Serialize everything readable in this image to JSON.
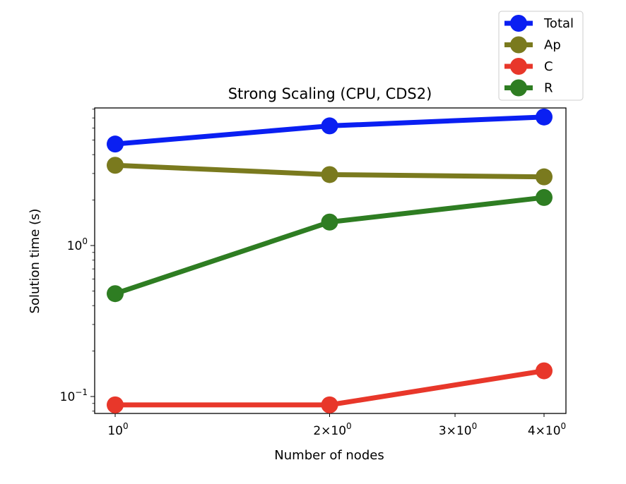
{
  "chart_data": {
    "type": "line",
    "title": "Strong Scaling (CPU, CDS2)",
    "xlabel": "Number of nodes",
    "ylabel": "Solution time (s)",
    "x_scale": "log",
    "y_scale": "log",
    "grid": false,
    "legend_position": "top-right",
    "x": [
      1,
      2,
      4
    ],
    "x_ticks": [
      {
        "value": 1,
        "base": "10",
        "exp": "0"
      },
      {
        "value": 2,
        "base": "2×10",
        "exp": "0"
      },
      {
        "value": 3,
        "base": "3×10",
        "exp": "0"
      },
      {
        "value": 4,
        "base": "4×10",
        "exp": "0"
      }
    ],
    "y_ticks": [
      {
        "value": 0.1,
        "base": "10",
        "exp": "−1"
      },
      {
        "value": 1,
        "base": "10",
        "exp": "0"
      }
    ],
    "series": [
      {
        "name": "Total",
        "color": "#0a1ff2",
        "values": [
          4.7,
          6.2,
          7.1
        ]
      },
      {
        "name": "Ap",
        "color": "#7a7a1e",
        "values": [
          3.4,
          2.95,
          2.85
        ]
      },
      {
        "name": "C",
        "color": "#e8372a",
        "values": [
          0.088,
          0.088,
          0.148
        ]
      },
      {
        "name": "R",
        "color": "#2e7d22",
        "values": [
          0.48,
          1.43,
          2.08
        ]
      }
    ]
  }
}
